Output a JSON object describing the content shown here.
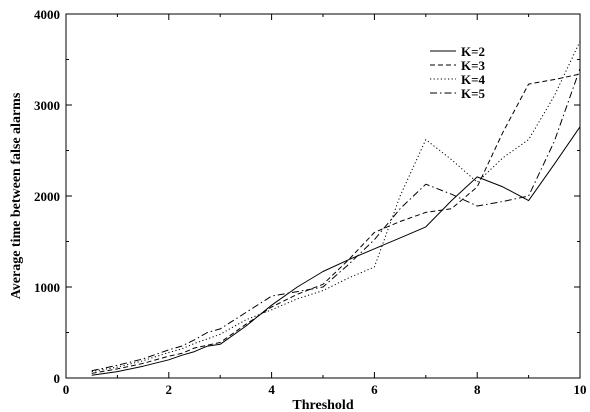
{
  "chart_data": {
    "type": "line",
    "xlabel": "Threshold",
    "ylabel": "Average time between false alarms",
    "xlim": [
      0,
      10
    ],
    "ylim": [
      0,
      4000
    ],
    "x_ticks": [
      0,
      2,
      4,
      6,
      8,
      10
    ],
    "y_ticks": [
      0,
      1000,
      2000,
      3000,
      4000
    ],
    "grid": false,
    "legend_position": "top-right",
    "series": [
      {
        "name": "K=2",
        "dash": "solid",
        "x": [
          0.5,
          1,
          1.5,
          2,
          2.25,
          2.5,
          2.75,
          3,
          3.5,
          4,
          4.5,
          5,
          5.5,
          6,
          6.5,
          7,
          7.5,
          8,
          8.5,
          9,
          9.5,
          10
        ],
        "y": [
          30,
          70,
          130,
          200,
          250,
          290,
          350,
          370,
          570,
          800,
          1000,
          1170,
          1300,
          1420,
          1540,
          1660,
          1950,
          2210,
          2100,
          1950,
          2350,
          2760
        ]
      },
      {
        "name": "K=3",
        "dash": "dashed",
        "x": [
          0.5,
          1,
          1.5,
          2,
          2.25,
          2.5,
          2.75,
          3,
          3.5,
          4,
          4.5,
          5,
          5.5,
          6,
          6.5,
          7,
          7.5,
          8,
          8.5,
          9,
          9.5,
          10
        ],
        "y": [
          50,
          100,
          160,
          240,
          270,
          330,
          360,
          390,
          590,
          780,
          920,
          1030,
          1300,
          1600,
          1720,
          1820,
          1860,
          2100,
          2700,
          3230,
          3280,
          3340
        ]
      },
      {
        "name": "K=4",
        "dash": "dotted",
        "x": [
          0.5,
          1,
          1.5,
          2,
          2.25,
          2.5,
          2.75,
          3,
          3.5,
          4,
          4.5,
          5,
          5.5,
          6,
          6.5,
          7,
          7.5,
          8,
          8.5,
          9,
          9.5,
          10
        ],
        "y": [
          70,
          120,
          190,
          280,
          320,
          380,
          430,
          480,
          640,
          750,
          870,
          960,
          1100,
          1220,
          2000,
          2620,
          2400,
          2150,
          2420,
          2620,
          3100,
          3700
        ]
      },
      {
        "name": "K=5",
        "dash": "dashdot",
        "x": [
          0.5,
          1,
          1.5,
          2,
          2.25,
          2.5,
          2.75,
          3,
          3.5,
          4,
          4.5,
          5,
          5.5,
          6,
          6.5,
          7,
          7.5,
          8,
          8.5,
          9,
          9.5,
          10
        ],
        "y": [
          80,
          140,
          210,
          310,
          350,
          420,
          500,
          540,
          720,
          900,
          950,
          1000,
          1250,
          1520,
          1860,
          2130,
          2020,
          1890,
          1940,
          2000,
          2600,
          3400
        ]
      }
    ]
  }
}
